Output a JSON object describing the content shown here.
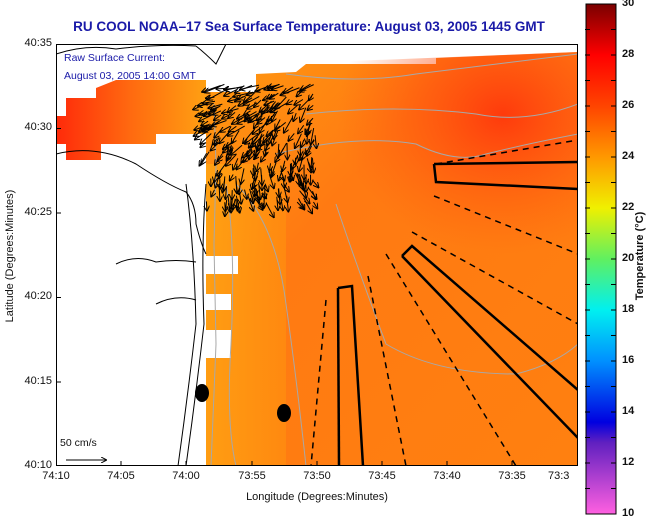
{
  "title": "RU COOL  NOAA–17  Sea Surface Temperature:  August 03, 2005 1445 GMT",
  "annotation": {
    "line1": "Raw Surface Current:",
    "line2": "August 03, 2005 14:00 GMT"
  },
  "axes": {
    "xlabel": "Longitude (Degrees:Minutes)",
    "ylabel": "Latitude (Degrees:Minutes)",
    "xticks": [
      "74:10",
      "74:05",
      "74:00",
      "73:55",
      "73:50",
      "73:45",
      "73:40",
      "73:35",
      "73:3"
    ],
    "yticks": [
      "40:35",
      "40:30",
      "40:25",
      "40:20",
      "40:15",
      "40:10"
    ]
  },
  "scale_vector": {
    "label": "50 cm/s"
  },
  "colorbar": {
    "label": "Temperature (°C)",
    "min": 10,
    "max": 30,
    "ticks": [
      "30",
      "28",
      "26",
      "24",
      "22",
      "20",
      "18",
      "16",
      "14",
      "12",
      "10"
    ]
  },
  "colors": {
    "title": "#1a1aa8",
    "land": "#ffffff",
    "sst_warm": "#ff4a10",
    "sst_mid": "#ff8a10",
    "sst_coast": "#ffa010",
    "bathymetry": "#a8a8a8"
  }
}
